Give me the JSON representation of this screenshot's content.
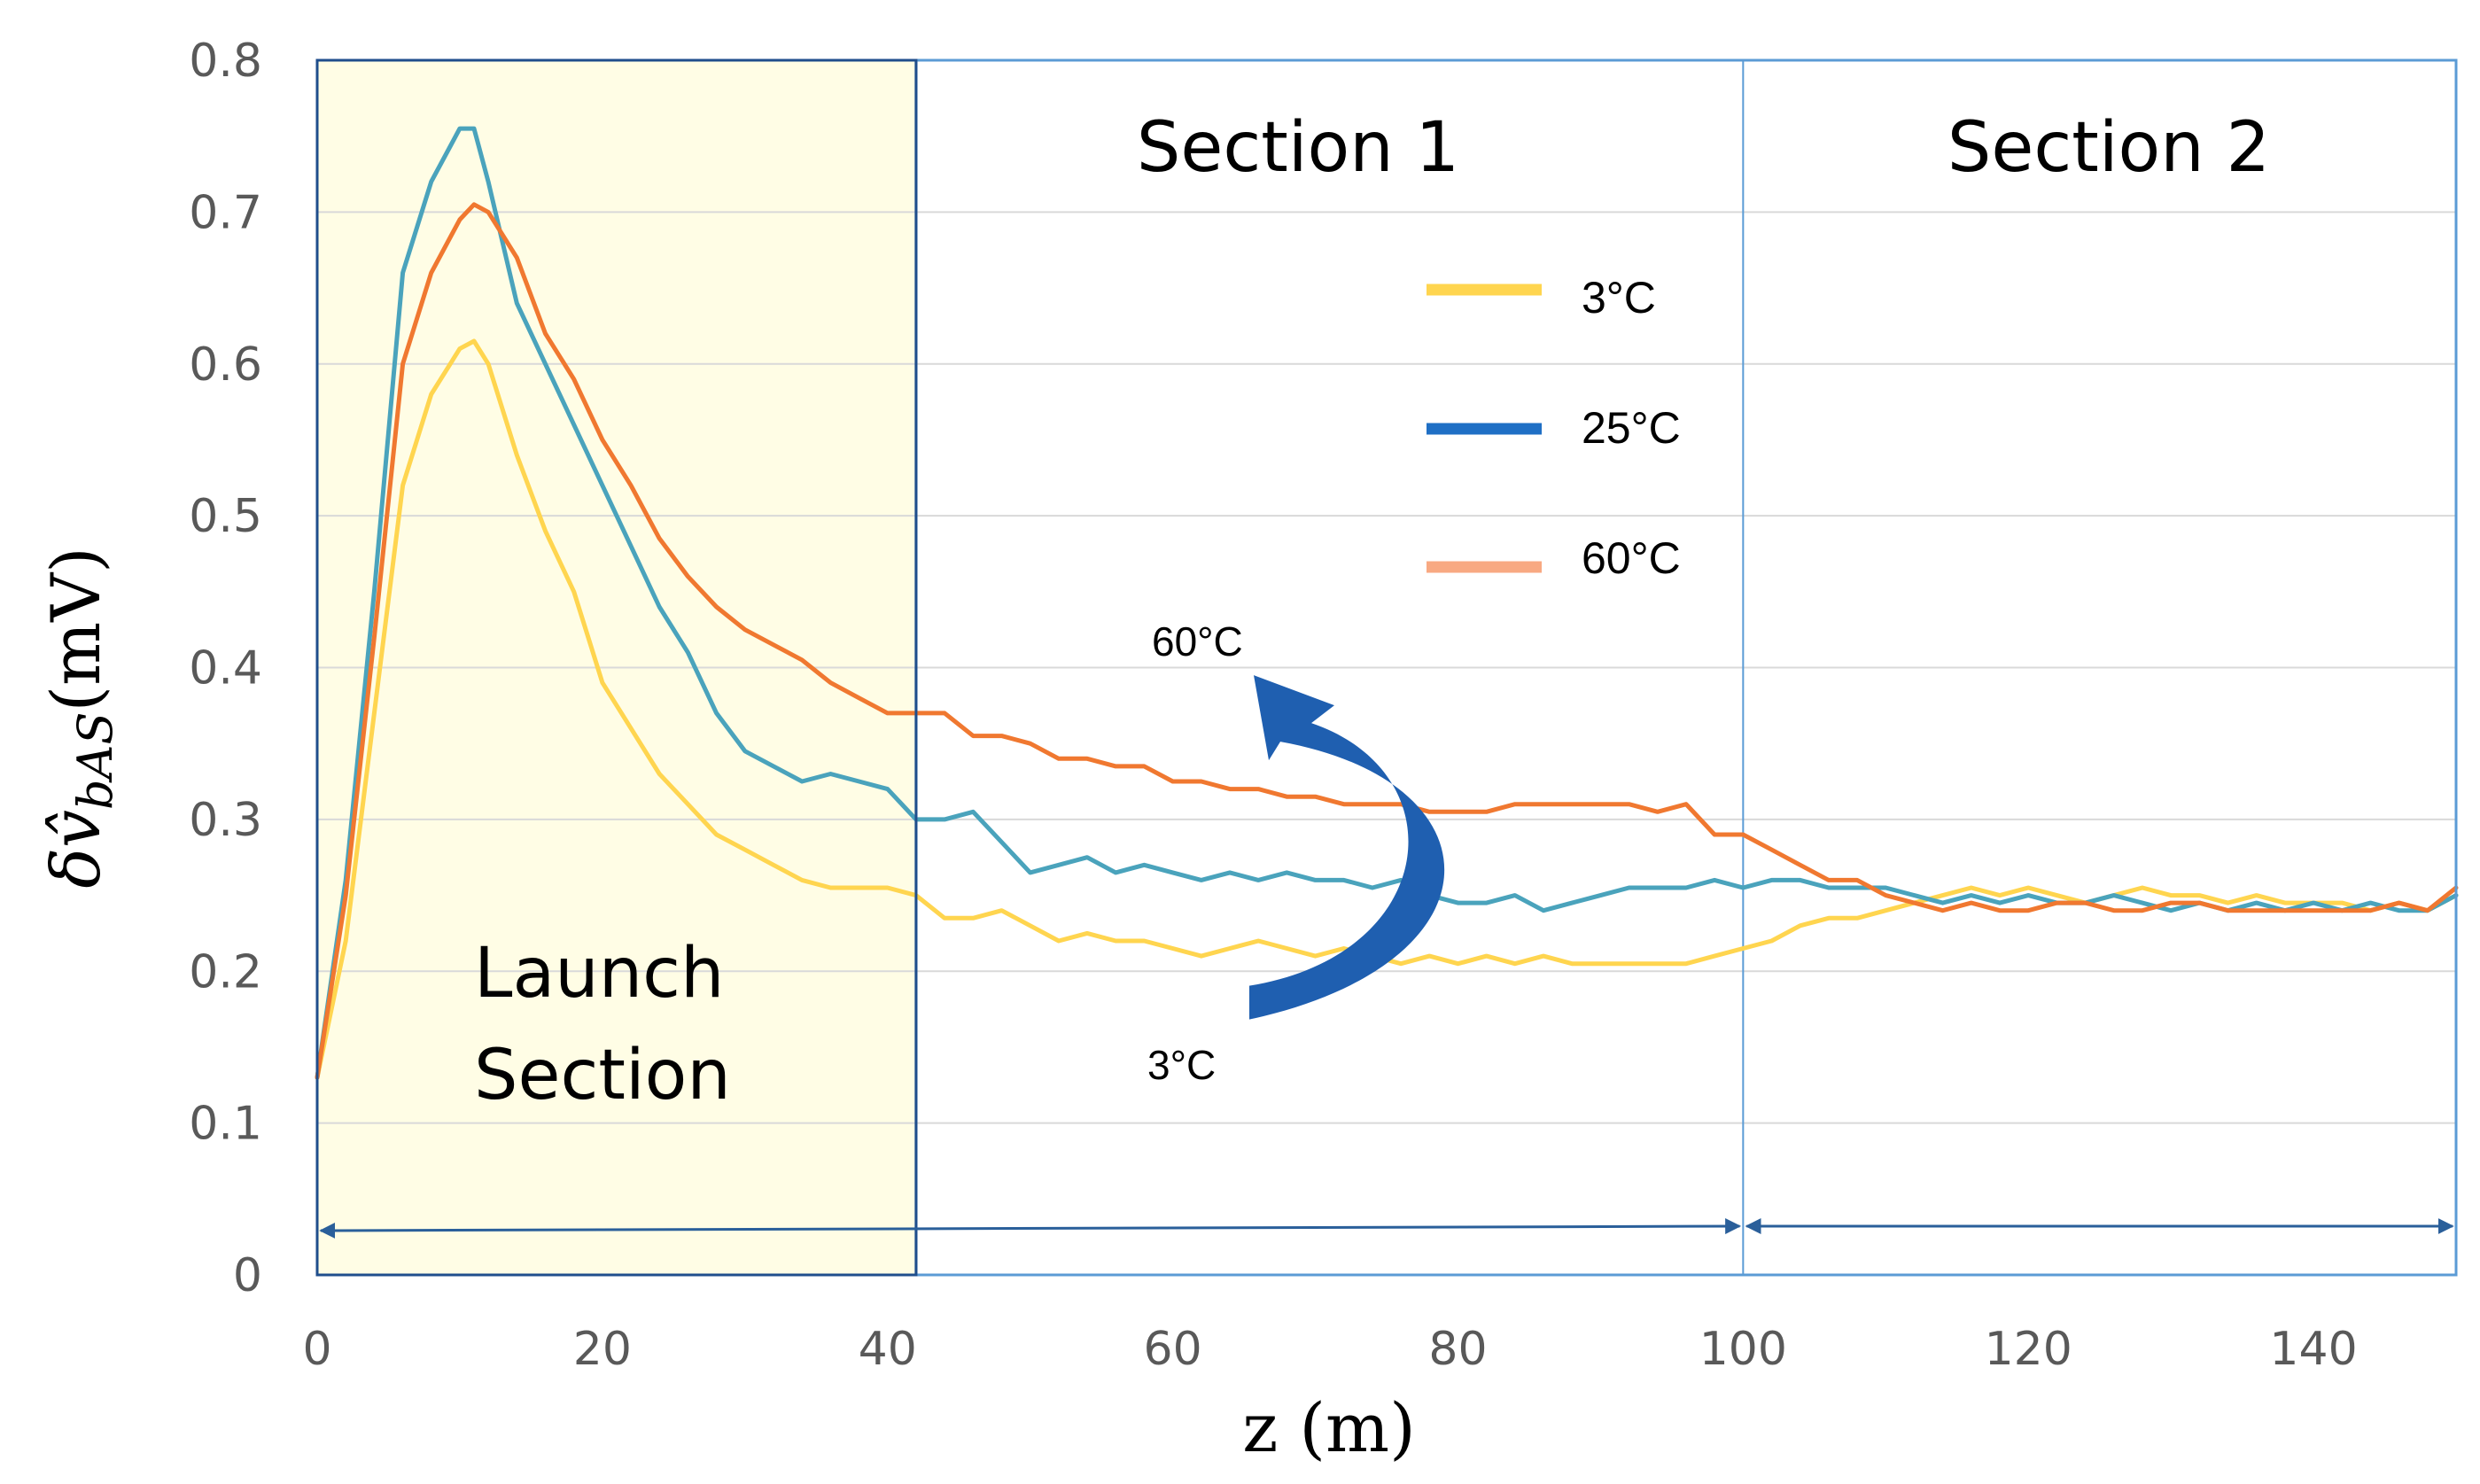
{
  "chart_data": {
    "type": "line",
    "title": "",
    "xlabel": "z (m)",
    "ylabel": "δv̂bAS(mV)",
    "ylabel_parts": {
      "delta": "δ",
      "v": "v̂",
      "sub": "bAS",
      "unit": "(mV)"
    },
    "xlim": [
      0,
      150
    ],
    "ylim": [
      0,
      0.8
    ],
    "xticks": [
      0,
      20,
      40,
      60,
      80,
      100,
      120,
      140
    ],
    "yticks": [
      "0",
      "0.1",
      "0.2",
      "0.3",
      "0.4",
      "0.5",
      "0.6",
      "0.7",
      "0.8"
    ],
    "grid": "horizontal",
    "sections": [
      {
        "label": "Launch Section",
        "lines": [
          "Launch",
          "Section"
        ],
        "x_start": 0,
        "x_end": 42,
        "fill": "#FFFDE5"
      },
      {
        "label": "Section 1",
        "x_start": 42,
        "x_end": 100
      },
      {
        "label": "Section 2",
        "x_start": 100,
        "x_end": 150
      }
    ],
    "legend": {
      "placement": "upper-center",
      "entries": [
        {
          "label": "3°C",
          "color": "#FFD54F"
        },
        {
          "label": "25°C",
          "color": "#1F6FC5"
        },
        {
          "label": "60°C",
          "color": "#F8A982"
        }
      ]
    },
    "annotations": {
      "arrow_top_label": "60°C",
      "arrow_bottom_label": "3°C",
      "arrow_color": "#1F5FB0",
      "arrow_x": 75,
      "arrow_from_y": 0.17,
      "arrow_to_y": 0.395
    },
    "series": [
      {
        "name": "3°C",
        "color": "#FFD54F",
        "x": [
          0,
          2,
          4,
          6,
          8,
          10,
          11,
          12,
          14,
          16,
          18,
          20,
          22,
          24,
          26,
          28,
          30,
          32,
          34,
          36,
          38,
          40,
          42,
          44,
          46,
          48,
          50,
          52,
          54,
          56,
          58,
          60,
          62,
          64,
          66,
          68,
          70,
          72,
          74,
          76,
          78,
          80,
          82,
          84,
          86,
          88,
          90,
          92,
          94,
          96,
          98,
          100,
          102,
          104,
          106,
          108,
          110,
          112,
          114,
          116,
          118,
          120,
          122,
          124,
          126,
          128,
          130,
          132,
          134,
          136,
          138,
          140,
          142,
          144,
          146,
          148,
          150
        ],
        "values": [
          0.13,
          0.22,
          0.37,
          0.52,
          0.58,
          0.61,
          0.615,
          0.6,
          0.54,
          0.49,
          0.45,
          0.39,
          0.36,
          0.33,
          0.31,
          0.29,
          0.28,
          0.27,
          0.26,
          0.255,
          0.255,
          0.255,
          0.25,
          0.235,
          0.235,
          0.24,
          0.23,
          0.22,
          0.225,
          0.22,
          0.22,
          0.215,
          0.21,
          0.215,
          0.22,
          0.215,
          0.21,
          0.215,
          0.21,
          0.205,
          0.21,
          0.205,
          0.21,
          0.205,
          0.21,
          0.205,
          0.205,
          0.205,
          0.205,
          0.205,
          0.21,
          0.215,
          0.22,
          0.23,
          0.235,
          0.235,
          0.24,
          0.245,
          0.25,
          0.255,
          0.25,
          0.255,
          0.25,
          0.245,
          0.25,
          0.255,
          0.25,
          0.25,
          0.245,
          0.25,
          0.245,
          0.245,
          0.245,
          0.24,
          0.245,
          0.24,
          0.25
        ]
      },
      {
        "name": "25°C",
        "color": "#4AA3BC",
        "x": [
          0,
          2,
          4,
          6,
          8,
          10,
          11,
          12,
          14,
          16,
          18,
          20,
          22,
          24,
          26,
          28,
          30,
          32,
          34,
          36,
          38,
          40,
          42,
          44,
          46,
          48,
          50,
          52,
          54,
          56,
          58,
          60,
          62,
          64,
          66,
          68,
          70,
          72,
          74,
          76,
          78,
          80,
          82,
          84,
          86,
          88,
          90,
          92,
          94,
          96,
          98,
          100,
          102,
          104,
          106,
          108,
          110,
          112,
          114,
          116,
          118,
          120,
          122,
          124,
          126,
          128,
          130,
          132,
          134,
          136,
          138,
          140,
          142,
          144,
          146,
          148,
          150
        ],
        "values": [
          0.13,
          0.26,
          0.45,
          0.66,
          0.72,
          0.755,
          0.755,
          0.72,
          0.64,
          0.6,
          0.56,
          0.52,
          0.48,
          0.44,
          0.41,
          0.37,
          0.345,
          0.335,
          0.325,
          0.33,
          0.325,
          0.32,
          0.3,
          0.3,
          0.305,
          0.285,
          0.265,
          0.27,
          0.275,
          0.265,
          0.27,
          0.265,
          0.26,
          0.265,
          0.26,
          0.265,
          0.26,
          0.26,
          0.255,
          0.26,
          0.25,
          0.245,
          0.245,
          0.25,
          0.24,
          0.245,
          0.25,
          0.255,
          0.255,
          0.255,
          0.26,
          0.255,
          0.26,
          0.26,
          0.255,
          0.255,
          0.255,
          0.25,
          0.245,
          0.25,
          0.245,
          0.25,
          0.245,
          0.245,
          0.25,
          0.245,
          0.24,
          0.245,
          0.24,
          0.245,
          0.24,
          0.245,
          0.24,
          0.245,
          0.24,
          0.24,
          0.25
        ]
      },
      {
        "name": "60°C",
        "color": "#F07830",
        "x": [
          0,
          2,
          4,
          6,
          8,
          10,
          11,
          12,
          14,
          16,
          18,
          20,
          22,
          24,
          26,
          28,
          30,
          32,
          34,
          36,
          38,
          40,
          42,
          44,
          46,
          48,
          50,
          52,
          54,
          56,
          58,
          60,
          62,
          64,
          66,
          68,
          70,
          72,
          74,
          76,
          78,
          80,
          82,
          84,
          86,
          88,
          90,
          92,
          94,
          96,
          98,
          100,
          102,
          104,
          106,
          108,
          110,
          112,
          114,
          116,
          118,
          120,
          122,
          124,
          126,
          128,
          130,
          132,
          134,
          136,
          138,
          140,
          142,
          144,
          146,
          148,
          150
        ],
        "values": [
          0.13,
          0.25,
          0.42,
          0.6,
          0.66,
          0.695,
          0.705,
          0.7,
          0.67,
          0.62,
          0.59,
          0.55,
          0.52,
          0.485,
          0.46,
          0.44,
          0.425,
          0.415,
          0.405,
          0.39,
          0.38,
          0.37,
          0.37,
          0.37,
          0.355,
          0.355,
          0.35,
          0.34,
          0.34,
          0.335,
          0.335,
          0.325,
          0.325,
          0.32,
          0.32,
          0.315,
          0.315,
          0.31,
          0.31,
          0.31,
          0.305,
          0.305,
          0.305,
          0.31,
          0.31,
          0.31,
          0.31,
          0.31,
          0.305,
          0.31,
          0.29,
          0.29,
          0.28,
          0.27,
          0.26,
          0.26,
          0.25,
          0.245,
          0.24,
          0.245,
          0.24,
          0.24,
          0.245,
          0.245,
          0.24,
          0.24,
          0.245,
          0.245,
          0.24,
          0.24,
          0.24,
          0.24,
          0.24,
          0.24,
          0.245,
          0.24,
          0.255
        ]
      }
    ]
  }
}
